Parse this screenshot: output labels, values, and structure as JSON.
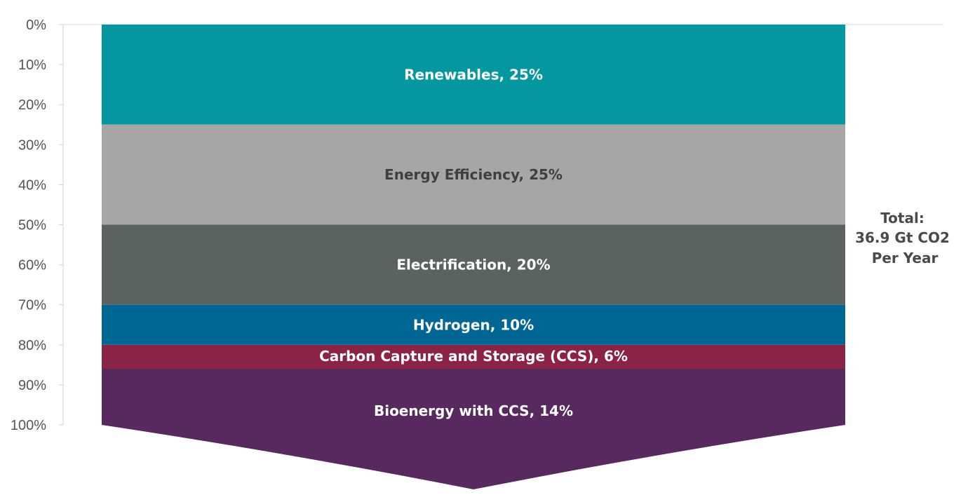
{
  "chart_data": {
    "type": "bar",
    "orientation": "stacked-vertical",
    "title": "",
    "xlabel": "",
    "ylabel": "",
    "ylim": [
      0,
      100
    ],
    "y_inverted": true,
    "y_ticks": [
      "0%",
      "10%",
      "20%",
      "30%",
      "40%",
      "50%",
      "60%",
      "70%",
      "80%",
      "90%",
      "100%"
    ],
    "grid": "top line only",
    "segments": [
      {
        "name": "Renewables",
        "value": 25,
        "label": "Renewables, 25%",
        "color": "#05979f",
        "label_color": "#ffffff"
      },
      {
        "name": "Energy Efficiency",
        "value": 25,
        "label": "Energy Efficiency, 25%",
        "color": "#a6a6a6",
        "label_color": "#3f3f3f"
      },
      {
        "name": "Electrification",
        "value": 20,
        "label": "Electrification, 20%",
        "color": "#5b6361",
        "label_color": "#ffffff"
      },
      {
        "name": "Hydrogen",
        "value": 10,
        "label": "Hydrogen, 10%",
        "color": "#006794",
        "label_color": "#ffffff"
      },
      {
        "name": "Carbon Capture and Storage (CCS)",
        "value": 6,
        "label": "Carbon Capture and Storage (CCS), 6%",
        "color": "#8a2346",
        "label_color": "#ffffff"
      },
      {
        "name": "Bioenergy with CCS",
        "value": 14,
        "label": "Bioenergy with CCS, 14%",
        "color": "#57295e",
        "label_color": "#ffffff"
      }
    ],
    "annotation": {
      "lines": [
        "Total:",
        "36.9 Gt CO2",
        "Per Year"
      ],
      "color": "#4a4a4a"
    }
  }
}
